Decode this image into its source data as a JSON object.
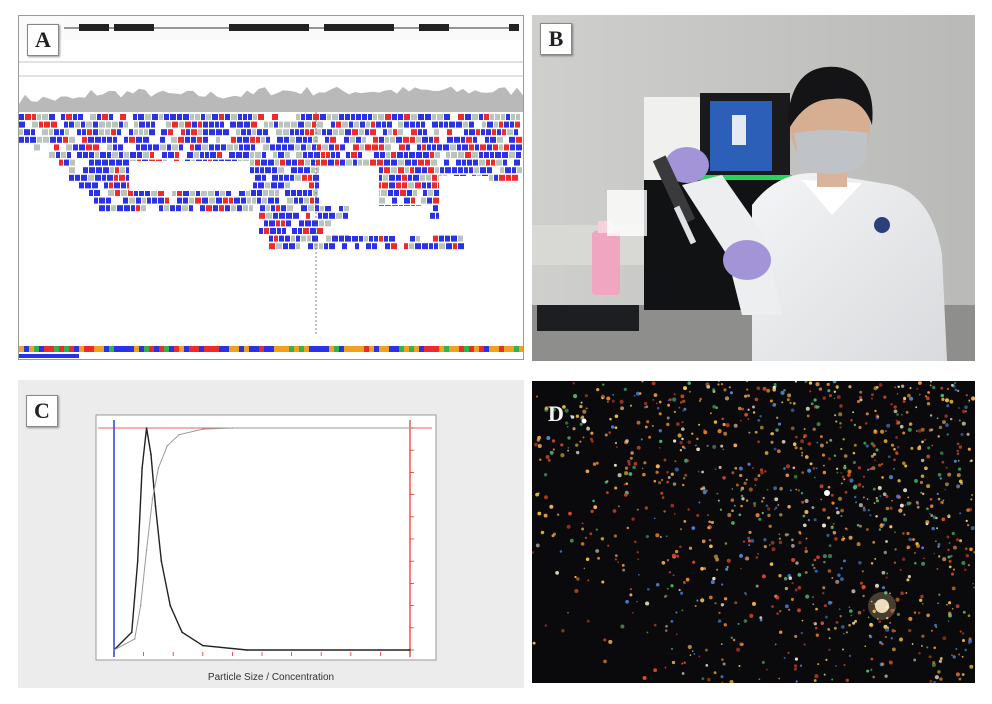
{
  "panels": {
    "a": {
      "label": "A"
    },
    "b": {
      "label": "B"
    },
    "c": {
      "label": "C",
      "xlabel": "Particle Size / Concentration"
    },
    "d": {
      "label": "D"
    }
  },
  "colors": {
    "read_blue": "#2a32e8",
    "read_red": "#ef2a2a",
    "read_gray": "#b9c4bd",
    "chart_red": "#e8301f",
    "chart_blue": "#2040e0",
    "panel_bg": "#ececec"
  },
  "chart_data": {
    "type": "line",
    "xlabel": "Particle Size / Concentration",
    "xlim": [
      0,
      1000
    ],
    "series": [
      {
        "values": [
          [
            0,
            0
          ],
          [
            60,
            8
          ],
          [
            80,
            40
          ],
          [
            95,
            82
          ],
          [
            110,
            100
          ],
          [
            125,
            88
          ],
          [
            140,
            65
          ],
          [
            160,
            40
          ],
          [
            190,
            20
          ],
          [
            230,
            8
          ],
          [
            300,
            2
          ],
          [
            450,
            0
          ],
          [
            1000,
            0
          ]
        ]
      },
      {
        "values": [
          [
            0,
            0
          ],
          [
            70,
            5
          ],
          [
            90,
            20
          ],
          [
            110,
            45
          ],
          [
            130,
            68
          ],
          [
            150,
            82
          ],
          [
            180,
            92
          ],
          [
            220,
            97
          ],
          [
            300,
            99.5
          ],
          [
            400,
            100
          ],
          [
            1000,
            100
          ]
        ]
      }
    ]
  }
}
